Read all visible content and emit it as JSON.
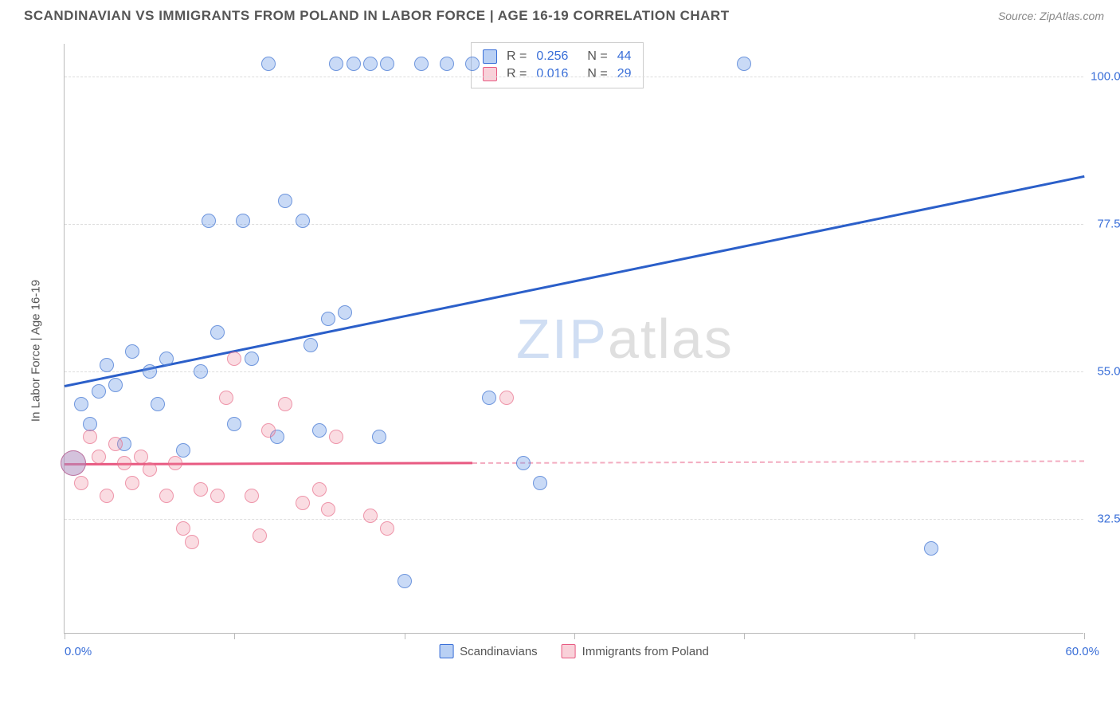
{
  "title": "SCANDINAVIAN VS IMMIGRANTS FROM POLAND IN LABOR FORCE | AGE 16-19 CORRELATION CHART",
  "source": "Source: ZipAtlas.com",
  "watermark": {
    "part1": "ZIP",
    "part2": "atlas"
  },
  "chart": {
    "type": "scatter",
    "y_axis_title": "In Labor Force | Age 16-19",
    "xlim": [
      0,
      60
    ],
    "ylim": [
      15,
      105
    ],
    "x_ticks": [
      0,
      10,
      20,
      30,
      40,
      50,
      60
    ],
    "x_labels": [
      {
        "value": 0,
        "text": "0.0%"
      },
      {
        "value": 60,
        "text": "60.0%"
      }
    ],
    "y_gridlines": [
      {
        "value": 32.5,
        "text": "32.5%"
      },
      {
        "value": 55.0,
        "text": "55.0%"
      },
      {
        "value": 77.5,
        "text": "77.5%"
      },
      {
        "value": 100.0,
        "text": "100.0%"
      }
    ],
    "background_color": "#ffffff",
    "grid_color": "#dddddd",
    "axis_color": "#bbbbbb",
    "label_color": "#3a6fd8",
    "point_radius": 9,
    "large_point_radius": 16
  },
  "series": [
    {
      "name": "Scandinavians",
      "color_fill": "rgba(100,150,230,0.35)",
      "color_stroke": "#3a6fd8",
      "R": "0.256",
      "N": "44",
      "trend": {
        "x1": 0,
        "y1": 53,
        "x2": 60,
        "y2": 85,
        "color": "#2b5fc9",
        "width": 2.5
      },
      "points": [
        {
          "x": 0.5,
          "y": 41,
          "r": 16
        },
        {
          "x": 1,
          "y": 50
        },
        {
          "x": 1.5,
          "y": 47
        },
        {
          "x": 2,
          "y": 52
        },
        {
          "x": 2.5,
          "y": 56
        },
        {
          "x": 3,
          "y": 53
        },
        {
          "x": 3.5,
          "y": 44
        },
        {
          "x": 4,
          "y": 58
        },
        {
          "x": 5,
          "y": 55
        },
        {
          "x": 5.5,
          "y": 50
        },
        {
          "x": 6,
          "y": 57
        },
        {
          "x": 7,
          "y": 43
        },
        {
          "x": 8,
          "y": 55
        },
        {
          "x": 8.5,
          "y": 78
        },
        {
          "x": 9,
          "y": 61
        },
        {
          "x": 10,
          "y": 47
        },
        {
          "x": 10.5,
          "y": 78
        },
        {
          "x": 11,
          "y": 57
        },
        {
          "x": 12,
          "y": 102
        },
        {
          "x": 12.5,
          "y": 45
        },
        {
          "x": 13,
          "y": 81
        },
        {
          "x": 14,
          "y": 78
        },
        {
          "x": 14.5,
          "y": 59
        },
        {
          "x": 15,
          "y": 46
        },
        {
          "x": 15.5,
          "y": 63
        },
        {
          "x": 16,
          "y": 102
        },
        {
          "x": 16.5,
          "y": 64
        },
        {
          "x": 17,
          "y": 102
        },
        {
          "x": 18,
          "y": 102
        },
        {
          "x": 18.5,
          "y": 45
        },
        {
          "x": 19,
          "y": 102
        },
        {
          "x": 20,
          "y": 23
        },
        {
          "x": 21,
          "y": 102
        },
        {
          "x": 22.5,
          "y": 102
        },
        {
          "x": 24,
          "y": 102
        },
        {
          "x": 25,
          "y": 51
        },
        {
          "x": 27,
          "y": 41
        },
        {
          "x": 28,
          "y": 38
        },
        {
          "x": 40,
          "y": 102
        },
        {
          "x": 51,
          "y": 28
        }
      ]
    },
    {
      "name": "Immigrants from Poland",
      "color_fill": "rgba(240,140,160,0.3)",
      "color_stroke": "#e85a82",
      "R": "0.016",
      "N": "29",
      "trend": {
        "x1": 0,
        "y1": 41,
        "x2": 60,
        "y2": 41.5,
        "color": "#e85a82",
        "width": 2,
        "solid_until": 24
      },
      "points": [
        {
          "x": 0.5,
          "y": 41,
          "r": 16
        },
        {
          "x": 1,
          "y": 38
        },
        {
          "x": 1.5,
          "y": 45
        },
        {
          "x": 2,
          "y": 42
        },
        {
          "x": 2.5,
          "y": 36
        },
        {
          "x": 3,
          "y": 44
        },
        {
          "x": 3.5,
          "y": 41
        },
        {
          "x": 4,
          "y": 38
        },
        {
          "x": 4.5,
          "y": 42
        },
        {
          "x": 5,
          "y": 40
        },
        {
          "x": 6,
          "y": 36
        },
        {
          "x": 6.5,
          "y": 41
        },
        {
          "x": 7,
          "y": 31
        },
        {
          "x": 7.5,
          "y": 29
        },
        {
          "x": 8,
          "y": 37
        },
        {
          "x": 9,
          "y": 36
        },
        {
          "x": 9.5,
          "y": 51
        },
        {
          "x": 10,
          "y": 57
        },
        {
          "x": 11,
          "y": 36
        },
        {
          "x": 11.5,
          "y": 30
        },
        {
          "x": 12,
          "y": 46
        },
        {
          "x": 13,
          "y": 50
        },
        {
          "x": 14,
          "y": 35
        },
        {
          "x": 15,
          "y": 37
        },
        {
          "x": 15.5,
          "y": 34
        },
        {
          "x": 16,
          "y": 45
        },
        {
          "x": 18,
          "y": 33
        },
        {
          "x": 19,
          "y": 31
        },
        {
          "x": 26,
          "y": 51
        }
      ]
    }
  ],
  "stats_legend": {
    "R_label": "R =",
    "N_label": "N ="
  },
  "bottom_legend": [
    {
      "swatch": "blue",
      "label": "Scandinavians"
    },
    {
      "swatch": "pink",
      "label": "Immigrants from Poland"
    }
  ]
}
